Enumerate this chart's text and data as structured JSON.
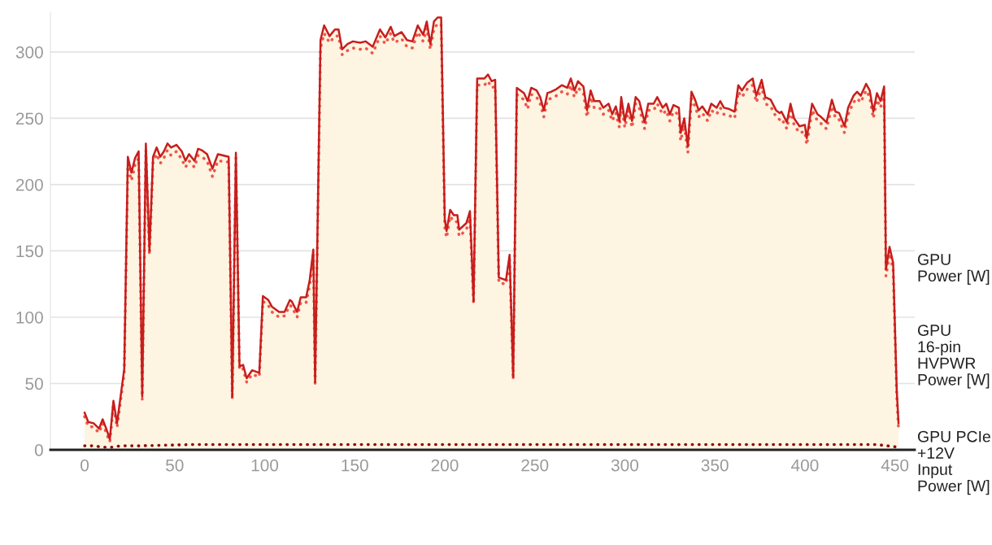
{
  "chart_data": {
    "type": "line",
    "xlim": [
      -19,
      461
    ],
    "ylim": [
      0,
      330
    ],
    "xticks": [
      0,
      50,
      100,
      150,
      200,
      250,
      300,
      350,
      400,
      450
    ],
    "yticks": [
      0,
      50,
      100,
      150,
      200,
      250,
      300
    ],
    "grid": "y",
    "legend": false,
    "x": [
      0,
      2,
      5,
      8,
      10,
      12,
      14,
      16,
      18,
      22,
      24,
      26,
      28,
      30,
      32,
      34,
      36,
      38,
      40,
      42,
      44,
      46,
      48,
      51,
      54,
      56,
      58,
      61,
      63,
      65,
      68,
      71,
      74,
      80,
      82,
      84,
      86,
      88,
      90,
      93,
      97,
      99,
      102,
      104,
      108,
      111,
      114,
      115,
      118,
      120,
      123,
      125,
      127,
      128,
      131,
      133,
      136,
      139,
      141,
      143,
      146,
      149,
      153,
      156,
      160,
      164,
      167,
      170,
      172,
      176,
      179,
      182,
      185,
      188,
      190,
      192,
      194,
      196,
      198,
      200,
      201,
      203,
      205,
      207,
      208,
      212,
      214,
      216,
      218,
      222,
      224,
      226,
      228,
      230,
      234,
      236,
      238,
      240,
      244,
      246,
      248,
      251,
      253,
      255,
      257,
      259,
      262,
      265,
      268,
      270,
      272,
      274,
      277,
      279,
      281,
      283,
      286,
      288,
      291,
      293,
      295,
      297,
      298,
      300,
      302,
      304,
      306,
      308,
      311,
      313,
      316,
      318,
      321,
      323,
      325,
      327,
      330,
      331,
      333,
      335,
      337,
      339,
      341,
      343,
      346,
      348,
      351,
      353,
      355,
      358,
      361,
      363,
      365,
      368,
      371,
      373,
      376,
      378,
      381,
      384,
      386,
      387,
      390,
      392,
      394,
      397,
      400,
      401,
      404,
      407,
      409,
      412,
      415,
      417,
      419,
      422,
      424,
      427,
      429,
      431,
      434,
      436,
      438,
      440,
      442,
      444,
      445,
      447,
      449,
      451,
      452
    ],
    "series": [
      {
        "name": "GPU Power [W]",
        "type": "area",
        "color": "#c71e1d",
        "line_style": "solid",
        "values": [
          28,
          21,
          20,
          16,
          23,
          16,
          8,
          37,
          20,
          61,
          221,
          209,
          220,
          225,
          40,
          231,
          150,
          221,
          228,
          221,
          225,
          231,
          228,
          230,
          225,
          218,
          223,
          218,
          227,
          226,
          223,
          212,
          223,
          221,
          40,
          224,
          63,
          64,
          54,
          60,
          58,
          116,
          113,
          108,
          104,
          104,
          113,
          112,
          104,
          115,
          115,
          128,
          151,
          51,
          309,
          320,
          312,
          317,
          317,
          302,
          306,
          308,
          307,
          308,
          304,
          317,
          311,
          319,
          312,
          315,
          309,
          308,
          320,
          313,
          323,
          306,
          323,
          326,
          326,
          174,
          165,
          181,
          177,
          177,
          166,
          171,
          180,
          112,
          280,
          280,
          283,
          278,
          279,
          130,
          128,
          147,
          55,
          273,
          269,
          263,
          273,
          271,
          266,
          256,
          269,
          270,
          272,
          275,
          273,
          280,
          271,
          278,
          274,
          256,
          271,
          263,
          263,
          258,
          261,
          253,
          259,
          248,
          266,
          248,
          261,
          248,
          266,
          263,
          247,
          261,
          261,
          266,
          258,
          261,
          253,
          260,
          258,
          239,
          250,
          229,
          270,
          264,
          256,
          259,
          253,
          261,
          258,
          263,
          258,
          257,
          255,
          275,
          271,
          277,
          280,
          267,
          279,
          266,
          264,
          256,
          254,
          255,
          247,
          261,
          250,
          244,
          245,
          235,
          261,
          253,
          251,
          247,
          264,
          255,
          254,
          244,
          258,
          267,
          270,
          267,
          276,
          271,
          255,
          269,
          263,
          274,
          136,
          153,
          141,
          45,
          20
        ]
      },
      {
        "name": "GPU 16-pin HVPWR Power [W]",
        "color": "#f0564d",
        "line_style": "dotted",
        "values": [
          25,
          18,
          17,
          13,
          20,
          13,
          6,
          34,
          17,
          58,
          214,
          203,
          215,
          220,
          38,
          226,
          147,
          217,
          223,
          216,
          220,
          226,
          222,
          225,
          219,
          213,
          218,
          213,
          222,
          221,
          218,
          206,
          218,
          217,
          38,
          220,
          60,
          61,
          51,
          57,
          55,
          112,
          109,
          104,
          100,
          101,
          109,
          108,
          100,
          111,
          111,
          124,
          147,
          48,
          303,
          314,
          307,
          312,
          312,
          298,
          301,
          303,
          302,
          303,
          299,
          312,
          306,
          314,
          307,
          310,
          304,
          303,
          315,
          308,
          318,
          302,
          318,
          321,
          321,
          168,
          160,
          176,
          172,
          172,
          161,
          166,
          175,
          110,
          275,
          275,
          278,
          273,
          274,
          126,
          125,
          143,
          53,
          268,
          264,
          257,
          268,
          266,
          261,
          251,
          264,
          265,
          267,
          270,
          268,
          275,
          266,
          273,
          269,
          251,
          266,
          258,
          258,
          253,
          256,
          248,
          254,
          243,
          261,
          243,
          256,
          243,
          261,
          258,
          242,
          256,
          256,
          261,
          253,
          256,
          248,
          255,
          253,
          233,
          245,
          224,
          265,
          259,
          251,
          254,
          248,
          256,
          253,
          258,
          253,
          252,
          250,
          270,
          266,
          272,
          275,
          262,
          274,
          261,
          259,
          251,
          249,
          250,
          242,
          256,
          245,
          239,
          240,
          230,
          256,
          248,
          246,
          242,
          259,
          250,
          249,
          239,
          253,
          262,
          265,
          262,
          271,
          266,
          250,
          264,
          258,
          269,
          131,
          148,
          136,
          40,
          16
        ]
      },
      {
        "name": "GPU PCIe +12V Input Power [W]",
        "color": "#8f0b0b",
        "line_style": "dotted",
        "x": [
          0,
          5,
          10,
          15,
          20,
          30,
          60,
          100,
          150,
          200,
          250,
          300,
          350,
          400,
          440,
          452
        ],
        "values": [
          3,
          3,
          2,
          2,
          3,
          3,
          4,
          4,
          4,
          4,
          4,
          4,
          4,
          4,
          4,
          2
        ]
      }
    ]
  }
}
